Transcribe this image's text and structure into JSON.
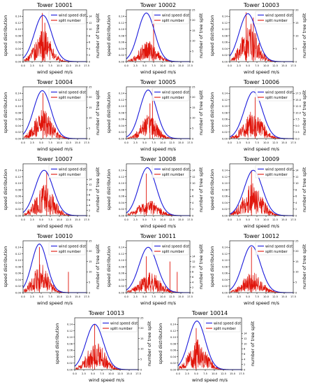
{
  "chart_data": [
    {
      "type": "line",
      "title": "Tower 10001",
      "xlabel": "wind speed m/s",
      "ylabel": "speed distribution",
      "ylabel_right": "number of tree split",
      "legend": [
        "wind speed dist",
        "split number"
      ],
      "legend_position": "top-right",
      "xlim": [
        0,
        17.5
      ],
      "xticks": [
        "0.0",
        "2.5",
        "5.0",
        "7.5",
        "10.0",
        "12.5",
        "15.0",
        "17.5"
      ],
      "ylim": [
        0,
        0.16
      ],
      "yticks": [
        "0.00",
        "0.02",
        "0.04",
        "0.06",
        "0.08",
        "0.10",
        "0.12",
        "0.14"
      ],
      "y2lim": [
        0,
        16
      ],
      "y2ticks": [
        "0",
        "2",
        "4",
        "6",
        "8",
        "10",
        "12",
        "14"
      ],
      "dist_peak_x": 5.5,
      "dist_peak_y": 0.143,
      "dist_sd": 2.4,
      "split_center_x": 5.5,
      "split_spread": 2.2,
      "split_typical_max": 10,
      "split_spikes": [
        [
          5.3,
          15
        ],
        [
          6.0,
          12
        ]
      ],
      "seed": 1
    },
    {
      "type": "line",
      "title": "Tower 10002",
      "xlabel": "wind speed m/s",
      "ylabel": "speed distribution",
      "ylabel_right": "number of tree split",
      "legend": [
        "wind speed dist",
        "split number"
      ],
      "legend_position": "top-right",
      "xlim": [
        0,
        17.5
      ],
      "xticks": [
        "0.0",
        "2.5",
        "5.0",
        "7.5",
        "10.0",
        "12.5",
        "15.0",
        "17.5"
      ],
      "ylim": [
        0,
        0.16
      ],
      "yticks": [
        "0.00",
        "0.02",
        "0.04",
        "0.06",
        "0.08",
        "0.10",
        "0.12",
        "0.14"
      ],
      "y2lim": [
        0,
        25
      ],
      "y2ticks": [
        "0",
        "5",
        "10",
        "15",
        "20",
        "25"
      ],
      "dist_peak_x": 5.5,
      "dist_peak_y": 0.15,
      "dist_sd": 2.3,
      "split_center_x": 6.0,
      "split_spread": 2.4,
      "split_typical_max": 10,
      "split_spikes": [
        [
          7.5,
          23
        ]
      ],
      "seed": 2
    },
    {
      "type": "line",
      "title": "Tower 10003",
      "xlabel": "wind speed m/s",
      "ylabel": "speed distribution",
      "ylabel_right": "number of tree split",
      "legend": [
        "wind speed dist",
        "split number"
      ],
      "legend_position": "top-right",
      "xlim": [
        0,
        17.5
      ],
      "xticks": [
        "0.0",
        "2.5",
        "5.0",
        "7.5",
        "10.0",
        "12.5",
        "15.0",
        "17.5"
      ],
      "ylim": [
        0,
        0.16
      ],
      "yticks": [
        "0.00",
        "0.02",
        "0.04",
        "0.06",
        "0.08",
        "0.10",
        "0.12",
        "0.14"
      ],
      "y2lim": [
        0,
        20
      ],
      "y2ticks": [
        "0",
        "5",
        "10",
        "15",
        "20"
      ],
      "dist_peak_x": 5.0,
      "dist_peak_y": 0.148,
      "dist_sd": 2.4,
      "split_center_x": 5.5,
      "split_spread": 2.3,
      "split_typical_max": 15,
      "split_spikes": [
        [
          4.5,
          19
        ],
        [
          6.5,
          17
        ]
      ],
      "seed": 3
    },
    {
      "type": "line",
      "title": "Tower 10004",
      "xlabel": "wind speed m/s",
      "ylabel": "speed distribution",
      "ylabel_right": "number of tree split",
      "legend": [
        "wind speed dist",
        "split number"
      ],
      "legend_position": "top-right",
      "xlim": [
        0,
        17.5
      ],
      "xticks": [
        "0.0",
        "2.5",
        "5.0",
        "7.5",
        "10.0",
        "12.5",
        "15.0",
        "17.5"
      ],
      "ylim": [
        0,
        0.16
      ],
      "yticks": [
        "0.00",
        "0.02",
        "0.04",
        "0.06",
        "0.08",
        "0.10",
        "0.12",
        "0.14"
      ],
      "y2lim": [
        0,
        25
      ],
      "y2ticks": [
        "0",
        "5",
        "10",
        "15",
        "20",
        "25"
      ],
      "dist_peak_x": 5.3,
      "dist_peak_y": 0.148,
      "dist_sd": 2.4,
      "split_center_x": 5.5,
      "split_spread": 2.4,
      "split_typical_max": 14,
      "split_spikes": [
        [
          5.5,
          22
        ]
      ],
      "seed": 4
    },
    {
      "type": "line",
      "title": "Tower 10005",
      "xlabel": "wind speed m/s",
      "ylabel": "speed distribution",
      "ylabel_right": "number of tree split",
      "legend": [
        "wind speed dist",
        "split number"
      ],
      "legend_position": "top-right",
      "xlim": [
        0,
        17.5
      ],
      "xticks": [
        "0.0",
        "2.5",
        "5.0",
        "7.5",
        "10.0",
        "12.5",
        "15.0",
        "17.5"
      ],
      "ylim": [
        0,
        0.16
      ],
      "yticks": [
        "0.00",
        "0.02",
        "0.04",
        "0.06",
        "0.08",
        "0.10",
        "0.12",
        "0.14"
      ],
      "y2lim": [
        0,
        25
      ],
      "y2ticks": [
        "0",
        "5",
        "10",
        "15",
        "20",
        "25"
      ],
      "dist_peak_x": 6.0,
      "dist_peak_y": 0.15,
      "dist_sd": 2.3,
      "split_center_x": 6.2,
      "split_spread": 2.2,
      "split_typical_max": 12,
      "split_spikes": [
        [
          7.2,
          24
        ],
        [
          6.5,
          17
        ]
      ],
      "seed": 5
    },
    {
      "type": "line",
      "title": "Tower 10006",
      "xlabel": "wind speed m/s",
      "ylabel": "speed distribution",
      "ylabel_right": "number of tree split",
      "legend": [
        "wind speed dist",
        "split number"
      ],
      "legend_position": "top-right",
      "xlim": [
        0,
        17.5
      ],
      "xticks": [
        "0.0",
        "2.5",
        "5.0",
        "7.5",
        "10.0",
        "12.5",
        "15.0",
        "17.5"
      ],
      "ylim": [
        0,
        0.16
      ],
      "yticks": [
        "0.00",
        "0.02",
        "0.04",
        "0.06",
        "0.08",
        "0.10",
        "0.12",
        "0.14"
      ],
      "y2lim": [
        0,
        20
      ],
      "y2ticks": [
        "0.0",
        "2.5",
        "5.0",
        "7.5",
        "10.0",
        "12.5",
        "15.0",
        "17.5"
      ],
      "dist_peak_x": 6.5,
      "dist_peak_y": 0.145,
      "dist_sd": 2.5,
      "split_center_x": 6.5,
      "split_spread": 2.6,
      "split_typical_max": 11,
      "split_spikes": [
        [
          7.0,
          16
        ]
      ],
      "seed": 6
    },
    {
      "type": "line",
      "title": "Tower 10007",
      "xlabel": "wind speed m/s",
      "ylabel": "speed distribution",
      "ylabel_right": "number of tree split",
      "legend": [
        "wind speed dist",
        "split number"
      ],
      "legend_position": "top-right",
      "xlim": [
        0,
        17.5
      ],
      "xticks": [
        "0.0",
        "2.5",
        "5.0",
        "7.5",
        "10.0",
        "12.5",
        "15.0",
        "17.5"
      ],
      "ylim": [
        0,
        0.16
      ],
      "yticks": [
        "0.00",
        "0.02",
        "0.04",
        "0.06",
        "0.08",
        "0.10",
        "0.12",
        "0.14"
      ],
      "y2lim": [
        0,
        20
      ],
      "y2ticks": [
        "0",
        "2",
        "4",
        "6",
        "8",
        "10",
        "12",
        "14"
      ],
      "dist_peak_x": 5.8,
      "dist_peak_y": 0.14,
      "dist_sd": 2.5,
      "split_center_x": 6.0,
      "split_spread": 2.5,
      "split_typical_max": 12,
      "split_spikes": [
        [
          6.5,
          17
        ]
      ],
      "seed": 7
    },
    {
      "type": "line",
      "title": "Tower 10008",
      "xlabel": "wind speed m/s",
      "ylabel": "speed distribution",
      "ylabel_right": "number of tree split",
      "legend": [
        "wind speed dist",
        "split number"
      ],
      "legend_position": "top-right",
      "xlim": [
        0,
        17.5
      ],
      "xticks": [
        "0.0",
        "2.5",
        "5.0",
        "7.5",
        "10.0",
        "12.5",
        "15.0",
        "17.5"
      ],
      "ylim": [
        0,
        0.16
      ],
      "yticks": [
        "0.00",
        "0.02",
        "0.04",
        "0.06",
        "0.08",
        "0.10",
        "0.12",
        "0.14"
      ],
      "y2lim": [
        0,
        16
      ],
      "y2ticks": [
        "0",
        "2",
        "4",
        "6",
        "8",
        "10",
        "12",
        "14"
      ],
      "dist_peak_x": 5.8,
      "dist_peak_y": 0.148,
      "dist_sd": 2.4,
      "split_center_x": 6.0,
      "split_spread": 2.8,
      "split_typical_max": 5,
      "split_spikes": [
        [
          5.5,
          13
        ]
      ],
      "seed": 8
    },
    {
      "type": "line",
      "title": "Tower 10009",
      "xlabel": "wind speed m/s",
      "ylabel": "speed distribution",
      "ylabel_right": "number of tree split",
      "legend": [
        "wind speed dist",
        "split number"
      ],
      "legend_position": "top-right",
      "xlim": [
        0,
        17.5
      ],
      "xticks": [
        "0.0",
        "2.5",
        "5.0",
        "7.5",
        "10.0",
        "12.5",
        "15.0",
        "17.5"
      ],
      "ylim": [
        0,
        0.16
      ],
      "yticks": [
        "0.00",
        "0.02",
        "0.04",
        "0.06",
        "0.08",
        "0.10",
        "0.12",
        "0.14"
      ],
      "y2lim": [
        0,
        16
      ],
      "y2ticks": [
        "0",
        "2",
        "4",
        "6",
        "8",
        "10",
        "12",
        "14"
      ],
      "dist_peak_x": 6.5,
      "dist_peak_y": 0.14,
      "dist_sd": 2.5,
      "split_center_x": 6.3,
      "split_spread": 2.6,
      "split_typical_max": 10,
      "split_spikes": [
        [
          6.0,
          14
        ]
      ],
      "seed": 9
    },
    {
      "type": "line",
      "title": "Tower 10010",
      "xlabel": "wind speed m/s",
      "ylabel": "speed distribution",
      "ylabel_right": "number of tree split",
      "legend": [
        "wind speed dist",
        "split number"
      ],
      "legend_position": "top-right",
      "xlim": [
        0,
        17.5
      ],
      "xticks": [
        "0.0",
        "2.5",
        "5.0",
        "7.5",
        "10.0",
        "12.5",
        "15.0",
        "17.5"
      ],
      "ylim": [
        0,
        0.16
      ],
      "yticks": [
        "0.00",
        "0.02",
        "0.04",
        "0.06",
        "0.08",
        "0.10",
        "0.12",
        "0.14"
      ],
      "y2lim": [
        0,
        25
      ],
      "y2ticks": [
        "0",
        "5",
        "10",
        "15",
        "20",
        "25"
      ],
      "dist_peak_x": 4.5,
      "dist_peak_y": 0.15,
      "dist_sd": 2.1,
      "split_center_x": 4.8,
      "split_spread": 2.2,
      "split_typical_max": 14,
      "split_spikes": [
        [
          4.5,
          22
        ],
        [
          12.5,
          10
        ]
      ],
      "seed": 10
    },
    {
      "type": "line",
      "title": "Tower 10011",
      "xlabel": "wind speed m/s",
      "ylabel": "speed distribution",
      "ylabel_right": "number of tree split",
      "legend": [
        "wind speed dist",
        "split number"
      ],
      "legend_position": "top-right",
      "xlim": [
        0,
        17.5
      ],
      "xticks": [
        "0.0",
        "2.5",
        "5.0",
        "7.5",
        "10.0",
        "12.5",
        "15.0",
        "17.5"
      ],
      "ylim": [
        0,
        0.16
      ],
      "yticks": [
        "0.00",
        "0.02",
        "0.04",
        "0.06",
        "0.08",
        "0.10",
        "0.12",
        "0.14"
      ],
      "y2lim": [
        0,
        20
      ],
      "y2ticks": [
        "0",
        "2",
        "4",
        "6",
        "8",
        "10",
        "12",
        "14"
      ],
      "dist_peak_x": 6.0,
      "dist_peak_y": 0.14,
      "dist_sd": 2.5,
      "split_center_x": 6.5,
      "split_spread": 2.8,
      "split_typical_max": 8,
      "split_spikes": [
        [
          5.5,
          14
        ],
        [
          12.0,
          12
        ],
        [
          14.0,
          8
        ]
      ],
      "seed": 11
    },
    {
      "type": "line",
      "title": "Tower 10012",
      "xlabel": "wind speed m/s",
      "ylabel": "speed distribution",
      "ylabel_right": "number of tree split",
      "legend": [
        "wind speed dist",
        "split number"
      ],
      "legend_position": "top-right",
      "xlim": [
        0,
        17.5
      ],
      "xticks": [
        "0.0",
        "2.5",
        "5.0",
        "7.5",
        "10.0",
        "12.5",
        "15.0",
        "17.5"
      ],
      "ylim": [
        0,
        0.16
      ],
      "yticks": [
        "0.00",
        "0.02",
        "0.04",
        "0.06",
        "0.08",
        "0.10",
        "0.12",
        "0.14"
      ],
      "y2lim": [
        0,
        25
      ],
      "y2ticks": [
        "0",
        "5",
        "10",
        "15",
        "20",
        "25"
      ],
      "dist_peak_x": 6.0,
      "dist_peak_y": 0.145,
      "dist_sd": 2.5,
      "split_center_x": 6.2,
      "split_spread": 2.6,
      "split_typical_max": 10,
      "split_spikes": [
        [
          6.0,
          22
        ]
      ],
      "seed": 12
    },
    {
      "type": "line",
      "title": "Tower 10013",
      "xlabel": "wind speed m/s",
      "ylabel": "speed distribution",
      "ylabel_right": "number of tree split",
      "legend": [
        "wind speed dist",
        "split number"
      ],
      "legend_position": "top-right",
      "xlim": [
        0,
        17.5
      ],
      "xticks": [
        "0.0",
        "2.5",
        "5.0",
        "7.5",
        "10.0",
        "12.5",
        "15.0",
        "17.5"
      ],
      "ylim": [
        0,
        0.16
      ],
      "yticks": [
        "0.00",
        "0.02",
        "0.04",
        "0.06",
        "0.08",
        "0.10",
        "0.12",
        "0.14"
      ],
      "y2lim": [
        0,
        25
      ],
      "y2ticks": [
        "0",
        "5",
        "10",
        "15",
        "20",
        "25"
      ],
      "dist_peak_x": 5.5,
      "dist_peak_y": 0.14,
      "dist_sd": 2.4,
      "split_center_x": 5.8,
      "split_spread": 2.4,
      "split_typical_max": 14,
      "split_spikes": [
        [
          5.5,
          22
        ]
      ],
      "seed": 13
    },
    {
      "type": "line",
      "title": "Tower 10014",
      "xlabel": "wind speed m/s",
      "ylabel": "speed distribution",
      "ylabel_right": "number of tree split",
      "legend": [
        "wind speed dist",
        "split number"
      ],
      "legend_position": "top-right",
      "xlim": [
        0,
        17.5
      ],
      "xticks": [
        "0.0",
        "2.5",
        "5.0",
        "7.5",
        "10.0",
        "12.5",
        "15.0",
        "17.5"
      ],
      "ylim": [
        0,
        0.16
      ],
      "yticks": [
        "0.00",
        "0.02",
        "0.04",
        "0.06",
        "0.08",
        "0.10",
        "0.12",
        "0.14"
      ],
      "y2lim": [
        0,
        20
      ],
      "y2ticks": [
        "0",
        "2",
        "4",
        "6",
        "8",
        "10",
        "12",
        "14"
      ],
      "dist_peak_x": 5.2,
      "dist_peak_y": 0.15,
      "dist_sd": 2.3,
      "split_center_x": 5.5,
      "split_spread": 2.4,
      "split_typical_max": 12,
      "split_spikes": [
        [
          5.0,
          16
        ]
      ],
      "seed": 14
    }
  ],
  "colors": {
    "dist_line": "#1a1adb",
    "split_line": "#e0140a",
    "axis": "#000000",
    "text": "#000000",
    "background": "#ffffff"
  }
}
